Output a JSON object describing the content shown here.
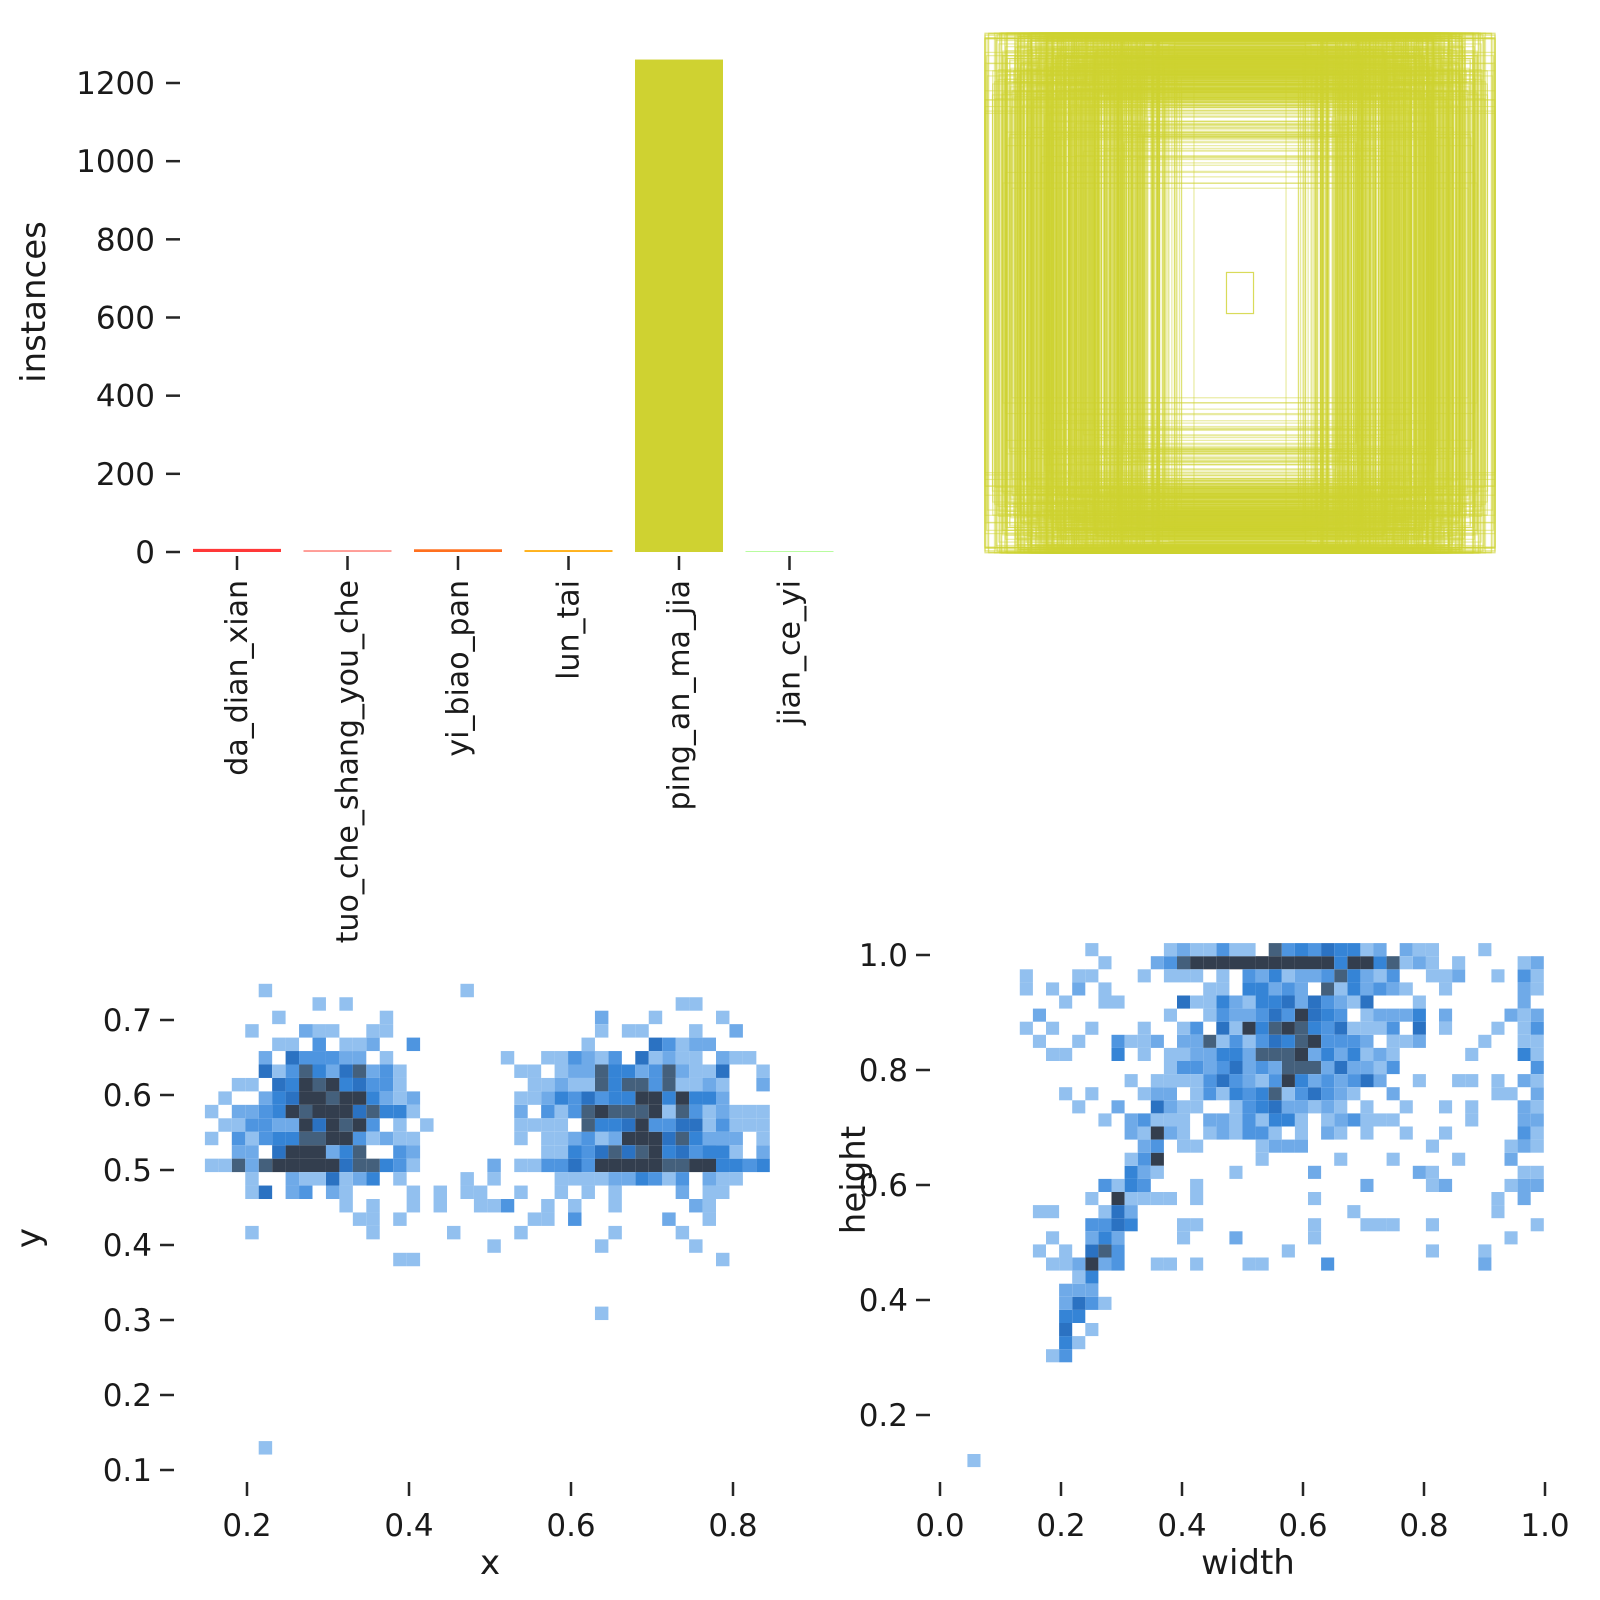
{
  "figure": {
    "background": "#ffffff",
    "panel_layout": "2x2 correlogram of dataset labels",
    "text_color": "#1a1a1a"
  },
  "chart_data": [
    {
      "id": "instances_per_class",
      "type": "bar",
      "title": "",
      "xlabel": "",
      "ylabel": "instances",
      "categories": [
        "da_dian_xian",
        "tuo_che_shang_you_che",
        "yi_biao_pan",
        "lun_tai",
        "ping_an_ma_jia",
        "jian_ce_yi"
      ],
      "values": [
        8,
        5,
        7,
        5,
        1260,
        1
      ],
      "bar_colors": [
        "#FF3838",
        "#FF9D97",
        "#FF701F",
        "#FFB21D",
        "#CFD231",
        "#48F90A"
      ],
      "y_ticks": [
        0,
        200,
        400,
        600,
        800,
        1000,
        1200
      ],
      "ylim": [
        0,
        1300
      ],
      "grid": false,
      "legend": "none",
      "x_tick_rotation": 90
    },
    {
      "id": "boxes_overlay",
      "type": "other",
      "description": "all dataset bounding boxes drawn as centered outlines",
      "box_color": "#CFD231",
      "box_opacity": 0.45,
      "box_count": 620,
      "seed": 7,
      "width_mixture": [
        {
          "w": 0.6,
          "mean": 0.62,
          "std": 0.13
        },
        {
          "w": 0.25,
          "mean": 0.88,
          "std": 0.08
        },
        {
          "w": 0.15,
          "mean": 0.38,
          "std": 0.08
        }
      ],
      "height_mixture": [
        {
          "w": 0.7,
          "mean": 0.88,
          "std": 0.09
        },
        {
          "w": 0.2,
          "mean": 0.99,
          "std": 0.012
        },
        {
          "w": 0.1,
          "mean": 0.62,
          "std": 0.1
        }
      ],
      "clamp_width": [
        0.18,
        1.0
      ],
      "clamp_height": [
        0.32,
        1.0
      ],
      "min_box": {
        "width": 0.053,
        "height": 0.079
      }
    },
    {
      "id": "xy_position_histogram",
      "type": "heatmap",
      "xlabel": "x",
      "ylabel": "y",
      "x_tick_labels": [
        "0.2",
        "0.4",
        "0.6",
        "0.8"
      ],
      "y_tick_labels": [
        "0.1",
        "0.2",
        "0.3",
        "0.4",
        "0.5",
        "0.6",
        "0.7"
      ],
      "xlim": [
        0.12,
        0.88
      ],
      "ylim": [
        0.07,
        0.77
      ],
      "samples": 1265,
      "seed": 11,
      "components": [
        {
          "w": 0.38,
          "type": "gauss",
          "mx": 0.295,
          "my": 0.575,
          "sx": 0.05,
          "sy": 0.05
        },
        {
          "w": 0.4,
          "type": "gauss",
          "mx": 0.69,
          "my": 0.575,
          "sx": 0.068,
          "sy": 0.05
        },
        {
          "w": 0.09,
          "type": "row",
          "y0": 0.498,
          "y1": 0.518,
          "mx": 0.27,
          "sx": 0.05
        },
        {
          "w": 0.09,
          "type": "row",
          "y0": 0.498,
          "y1": 0.518,
          "mx": 0.7,
          "sx": 0.07
        },
        {
          "w": 0.04,
          "type": "uniform",
          "x0": 0.2,
          "x1": 0.8,
          "my": 0.46,
          "sy": 0.035
        }
      ],
      "outliers": [
        [
          0.216,
          0.13
        ],
        [
          0.638,
          0.315
        ],
        [
          0.385,
          0.385
        ],
        [
          0.41,
          0.378
        ]
      ],
      "clamp_x": [
        0.155,
        0.845
      ],
      "clamp_y": [
        0.37,
        0.735
      ],
      "density_colors": [
        {
          "min": 8,
          "color": "#333e4e"
        },
        {
          "min": 6,
          "color": "#44607c"
        },
        {
          "min": 5,
          "color": "#2b72c2"
        },
        {
          "min": 4,
          "color": "#3584d6"
        },
        {
          "min": 3,
          "color": "#4e95e0"
        },
        {
          "min": 2,
          "color": "#6faae8"
        },
        {
          "min": 1,
          "color": "#92c0ef"
        }
      ]
    },
    {
      "id": "wh_size_histogram",
      "type": "heatmap",
      "xlabel": "width",
      "ylabel": "height",
      "x_tick_labels": [
        "0.0",
        "0.2",
        "0.4",
        "0.6",
        "0.8",
        "1.0"
      ],
      "y_tick_labels": [
        "0.2",
        "0.4",
        "0.6",
        "0.8",
        "1.0"
      ],
      "xlim": [
        -0.05,
        1.05
      ],
      "ylim": [
        0.05,
        1.05
      ],
      "samples": 1265,
      "seed": 23,
      "components": [
        {
          "w": 0.2,
          "type": "band",
          "y0": 0.975,
          "y1": 1.0,
          "mx": 0.55,
          "sx": 0.09
        },
        {
          "w": 0.5,
          "type": "cloud",
          "mx": 0.57,
          "my": 0.85,
          "sx": 0.11,
          "sy": 0.08,
          "corr": 0.25
        },
        {
          "w": 0.12,
          "type": "trail",
          "x0": 0.195,
          "x1": 0.38,
          "base": 0.33,
          "slope": 2.2,
          "noise": 0.035
        },
        {
          "w": 0.05,
          "type": "edge",
          "x0": 0.96,
          "x1": 1.0,
          "y0": 0.58,
          "y1": 1.0
        },
        {
          "w": 0.13,
          "type": "sprinkle",
          "x0": 0.14,
          "x1": 1.0,
          "y0": 0.45,
          "y1": 1.0
        }
      ],
      "outliers": [
        [
          0.052,
          0.13
        ]
      ],
      "clamp_x": [
        0.02,
        1.0
      ],
      "clamp_y": [
        0.3,
        1.0
      ],
      "density_colors": [
        {
          "min": 8,
          "color": "#333e4e"
        },
        {
          "min": 6,
          "color": "#44607c"
        },
        {
          "min": 5,
          "color": "#2b72c2"
        },
        {
          "min": 4,
          "color": "#3584d6"
        },
        {
          "min": 3,
          "color": "#4e95e0"
        },
        {
          "min": 2,
          "color": "#6faae8"
        },
        {
          "min": 1,
          "color": "#92c0ef"
        }
      ]
    }
  ]
}
